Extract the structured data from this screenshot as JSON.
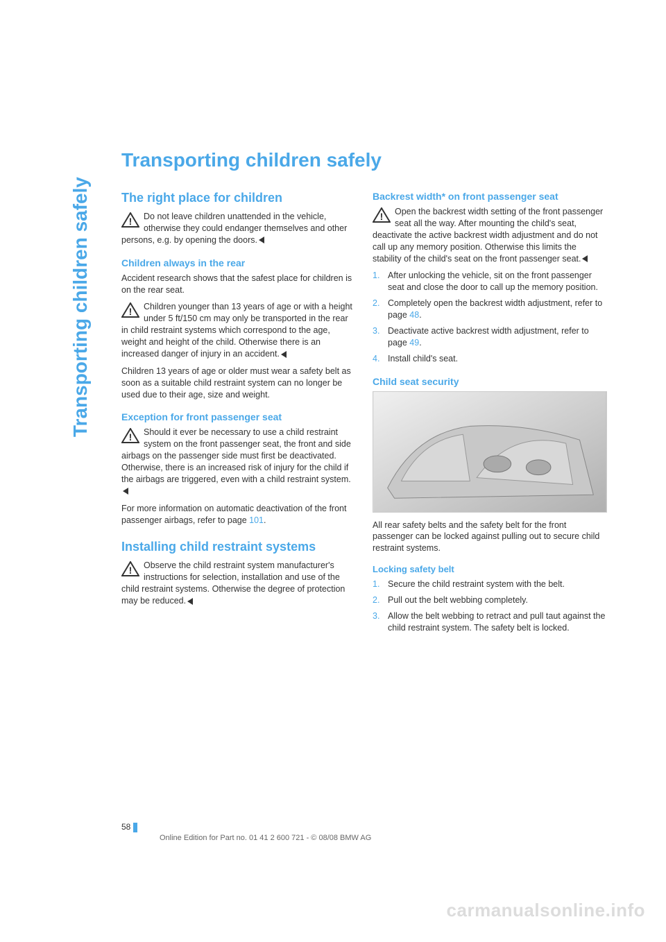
{
  "sidebar": "Transporting children safely",
  "title": "Transporting children safely",
  "left": {
    "h2_1": "The right place for children",
    "warn1": "Do not leave children unattended in the vehicle, otherwise they could endanger themselves and other persons, e.g. by opening the doors.",
    "h3_1": "Children always in the rear",
    "p1": "Accident research shows that the safest place for children is on the rear seat.",
    "warn2": "Children younger than 13 years of age or with a height under 5 ft/150 cm may only be transported in the rear in child restraint systems which correspond to the age, weight and height of the child. Otherwise there is an increased danger of injury in an accident.",
    "p2": "Children 13 years of age or older must wear a safety belt as soon as a suitable child restraint system can no longer be used due to their age, size and weight.",
    "h3_2": "Exception for front passenger seat",
    "warn3": "Should it ever be necessary to use a child restraint system on the front passenger seat, the front and side airbags on the passenger side must first be deactivated. Otherwise, there is an increased risk of injury for the child if the airbags are triggered, even with a child restraint system.",
    "p3_a": "For more information on automatic deactivation of the front passenger airbags, refer to page ",
    "p3_link": "101",
    "p3_b": ".",
    "h2_2": "Installing child restraint systems",
    "warn4": "Observe the child restraint system manufacturer's instructions for selection, installation and use of the child restraint systems. Otherwise the degree of protection may be reduced."
  },
  "right": {
    "h3_1": "Backrest width* on front passenger seat",
    "warn1": "Open the backrest width setting of the front passenger seat all the way. After mounting the child's seat, deactivate the active backrest width adjustment and do not call up any memory position. Otherwise this limits the stability of the child's seat on the front passenger seat.",
    "steps1": [
      "After unlocking the vehicle, sit on the front passenger seat and close the door to call up the memory position.",
      {
        "a": "Completely open the backrest width adjustment, refer to page ",
        "link": "48",
        "b": "."
      },
      {
        "a": "Deactivate active backrest width adjustment, refer to page ",
        "link": "49",
        "b": "."
      },
      "Install child's seat."
    ],
    "h3_2": "Child seat security",
    "p1": "All rear safety belts and the safety belt for the front passenger can be locked against pulling out to secure child restraint systems.",
    "h4_1": "Locking safety belt",
    "steps2": [
      "Secure the child restraint system with the belt.",
      "Pull out the belt webbing completely.",
      "Allow the belt webbing to retract and pull taut against the child restraint system. The safety belt is locked."
    ]
  },
  "page_number": "58",
  "footer": "Online Edition for Part no. 01 41 2 600 721 - © 08/08 BMW AG",
  "watermark": "carmanualsonline.info",
  "colors": {
    "accent": "#4aa8e8",
    "text": "#333333",
    "watermark": "#dcdcdc"
  }
}
